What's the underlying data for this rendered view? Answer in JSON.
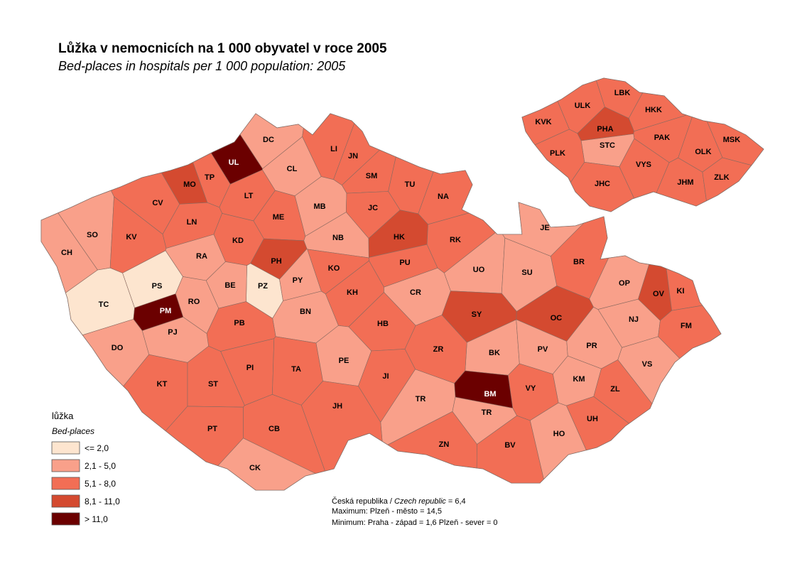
{
  "header": {
    "title": "Lůžka  v nemocnicích na 1 000 obyvatel v roce 2005",
    "subtitle": "Bed-places in hospitals per 1 000 population: 2005"
  },
  "districts": [
    {
      "label": "DC",
      "color": "#f9a08a"
    },
    {
      "label": "UL",
      "color": "#6b0000"
    },
    {
      "label": "TP",
      "color": "#f26e55"
    },
    {
      "label": "MO",
      "color": "#d44a30"
    },
    {
      "label": "LI",
      "color": "#f26e55"
    },
    {
      "label": "JN",
      "color": "#f26e55"
    },
    {
      "label": "CL",
      "color": "#f9a08a"
    },
    {
      "label": "SM",
      "color": "#f26e55"
    },
    {
      "label": "TU",
      "color": "#f26e55"
    },
    {
      "label": "NA",
      "color": "#f26e55"
    },
    {
      "label": "CV",
      "color": "#f26e55"
    },
    {
      "label": "LT",
      "color": "#f26e55"
    },
    {
      "label": "MB",
      "color": "#f9a08a"
    },
    {
      "label": "JC",
      "color": "#f26e55"
    },
    {
      "label": "LN",
      "color": "#f26e55"
    },
    {
      "label": "ME",
      "color": "#f26e55"
    },
    {
      "label": "SO",
      "color": "#f9a08a"
    },
    {
      "label": "KV",
      "color": "#f26e55"
    },
    {
      "label": "CH",
      "color": "#f9a08a"
    },
    {
      "label": "KD",
      "color": "#f26e55"
    },
    {
      "label": "NB",
      "color": "#f9a08a"
    },
    {
      "label": "HK",
      "color": "#d44a30"
    },
    {
      "label": "RK",
      "color": "#f26e55"
    },
    {
      "label": "JE",
      "color": "#f9a08a"
    },
    {
      "label": "RA",
      "color": "#f9a08a"
    },
    {
      "label": "PH",
      "color": "#d44a30"
    },
    {
      "label": "BR",
      "color": "#f26e55"
    },
    {
      "label": "KO",
      "color": "#f26e55"
    },
    {
      "label": "PU",
      "color": "#f26e55"
    },
    {
      "label": "UO",
      "color": "#f9a08a"
    },
    {
      "label": "SU",
      "color": "#f9a08a"
    },
    {
      "label": "PS",
      "color": "#fde5cf"
    },
    {
      "label": "PZ",
      "color": "#fde5cf"
    },
    {
      "label": "PY",
      "color": "#f9a08a"
    },
    {
      "label": "BE",
      "color": "#f9a08a"
    },
    {
      "label": "RO",
      "color": "#f9a08a"
    },
    {
      "label": "TC",
      "color": "#fde5cf"
    },
    {
      "label": "OP",
      "color": "#f9a08a"
    },
    {
      "label": "OV",
      "color": "#d44a30"
    },
    {
      "label": "KI",
      "color": "#f26e55"
    },
    {
      "label": "KH",
      "color": "#f26e55"
    },
    {
      "label": "CR",
      "color": "#f9a08a"
    },
    {
      "label": "PM",
      "color": "#6b0000"
    },
    {
      "label": "BN",
      "color": "#f9a08a"
    },
    {
      "label": "SY",
      "color": "#d44a30"
    },
    {
      "label": "OC",
      "color": "#d44a30"
    },
    {
      "label": "NJ",
      "color": "#f9a08a"
    },
    {
      "label": "FM",
      "color": "#f26e55"
    },
    {
      "label": "PB",
      "color": "#f26e55"
    },
    {
      "label": "HB",
      "color": "#f26e55"
    },
    {
      "label": "PJ",
      "color": "#f9a08a"
    },
    {
      "label": "DO",
      "color": "#f9a08a"
    },
    {
      "label": "BK",
      "color": "#f9a08a"
    },
    {
      "label": "PV",
      "color": "#f9a08a"
    },
    {
      "label": "PR",
      "color": "#f9a08a"
    },
    {
      "label": "ZR",
      "color": "#f26e55"
    },
    {
      "label": "PE",
      "color": "#f9a08a"
    },
    {
      "label": "VS",
      "color": "#f9a08a"
    },
    {
      "label": "PI",
      "color": "#f26e55"
    },
    {
      "label": "TA",
      "color": "#f26e55"
    },
    {
      "label": "KM",
      "color": "#f9a08a"
    },
    {
      "label": "KT",
      "color": "#f26e55"
    },
    {
      "label": "ST",
      "color": "#f26e55"
    },
    {
      "label": "JI",
      "color": "#f26e55"
    },
    {
      "label": "ZL",
      "color": "#f26e55"
    },
    {
      "label": "VY",
      "color": "#f26e55"
    },
    {
      "label": "BM",
      "color": "#6b0000"
    },
    {
      "label": "TR",
      "color": "#f9a08a"
    },
    {
      "label": "JH",
      "color": "#f26e55"
    },
    {
      "label": "TR",
      "color": "#f9a08a"
    },
    {
      "label": "UH",
      "color": "#f26e55"
    },
    {
      "label": "PT",
      "color": "#f26e55"
    },
    {
      "label": "CB",
      "color": "#f26e55"
    },
    {
      "label": "HO",
      "color": "#f9a08a"
    },
    {
      "label": "ZN",
      "color": "#f26e55"
    },
    {
      "label": "BV",
      "color": "#f26e55"
    },
    {
      "label": "CK",
      "color": "#f9a08a"
    }
  ],
  "regions": [
    {
      "label": "ULK",
      "color": "#f26e55"
    },
    {
      "label": "LBK",
      "color": "#f26e55"
    },
    {
      "label": "KVK",
      "color": "#f26e55"
    },
    {
      "label": "HKK",
      "color": "#f26e55"
    },
    {
      "label": "PHA",
      "color": "#d44a30"
    },
    {
      "label": "STC",
      "color": "#f9a08a"
    },
    {
      "label": "PAK",
      "color": "#f26e55"
    },
    {
      "label": "MSK",
      "color": "#f26e55"
    },
    {
      "label": "PLK",
      "color": "#f26e55"
    },
    {
      "label": "OLK",
      "color": "#f26e55"
    },
    {
      "label": "VYS",
      "color": "#f26e55"
    },
    {
      "label": "JHC",
      "color": "#f26e55"
    },
    {
      "label": "JHM",
      "color": "#f26e55"
    },
    {
      "label": "ZLK",
      "color": "#f26e55"
    }
  ],
  "legend": {
    "title": "lůžka",
    "subtitle": "Bed-places",
    "items": [
      {
        "label": "<= 2,0",
        "color": "#fde5cf"
      },
      {
        "label": "2,1 - 5,0",
        "color": "#f9a08a"
      },
      {
        "label": "5,1 - 8,0",
        "color": "#f26e55"
      },
      {
        "label": "8,1 - 11,0",
        "color": "#d44a30"
      },
      {
        "label": "> 11,0",
        "color": "#6b0000"
      }
    ]
  },
  "notes": {
    "republic_cz": "Česká republika / ",
    "republic_en": "Czech republic",
    "republic_value": " =  6,4",
    "maximum": "Maximum:  Plzeň - město = 14,5",
    "minimum": "Minimum: Praha - západ  = 1,6  Plzeň - sever = 0"
  }
}
